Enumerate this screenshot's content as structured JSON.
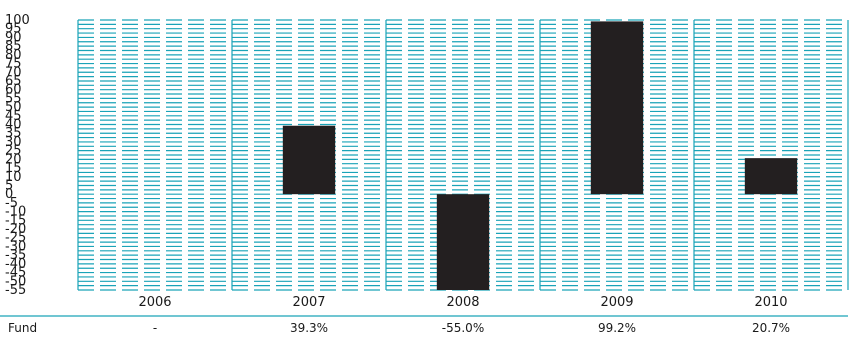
{
  "chart_data": {
    "type": "bar",
    "categories": [
      "2006",
      "2007",
      "2008",
      "2009",
      "2010"
    ],
    "values": [
      null,
      39.3,
      -55.0,
      99.2,
      20.7
    ],
    "ylim": [
      -55,
      100
    ],
    "yticks": [
      100,
      95,
      90,
      85,
      80,
      75,
      70,
      65,
      60,
      55,
      50,
      45,
      40,
      35,
      30,
      25,
      20,
      15,
      10,
      5,
      0,
      -5,
      -10,
      -15,
      -20,
      -25,
      -30,
      -35,
      -40,
      -45,
      -50,
      -55
    ],
    "ytick_labels": [
      "100",
      "95",
      "90",
      "85",
      "80",
      "75",
      "70",
      "65",
      "60",
      "55",
      "50",
      "45",
      "40",
      "35",
      "30",
      "25",
      "20",
      "15",
      "10",
      "5",
      "0",
      "-5",
      "-10",
      "-15",
      "-20",
      "-25",
      "-30",
      "-35",
      "-40",
      "-45",
      "-50",
      "-55"
    ],
    "grid": true,
    "bar_color": "#231f20",
    "grid_color": "#1aa3b8",
    "table": {
      "row_label": "Fund",
      "cells": [
        "-",
        "39.3%",
        "-55.0%",
        "99.2%",
        "20.7%"
      ]
    }
  }
}
